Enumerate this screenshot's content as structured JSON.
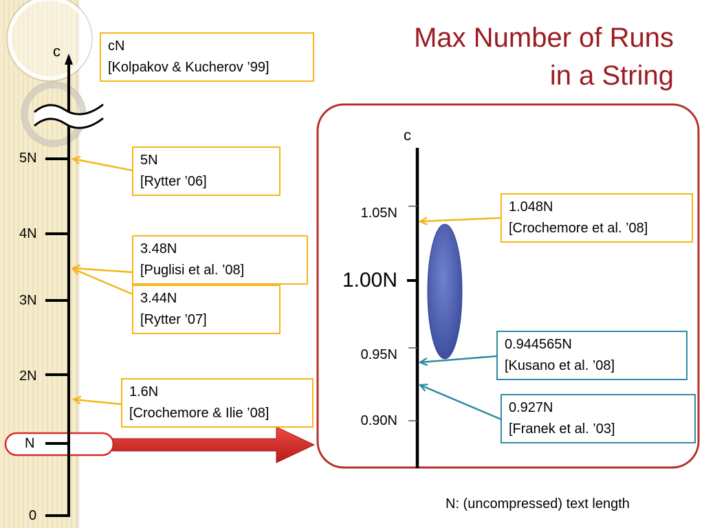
{
  "colors": {
    "title": "#9B1C22",
    "box_border_yellow": "#F4B619",
    "box_border_teal": "#2E8BA3",
    "panel_border": "#B3302C",
    "highlight_arrow": "#D62B2B",
    "ellipse": "#4A5DB0"
  },
  "title": {
    "line1": "Max Number of Runs",
    "line2": "in a String"
  },
  "left_axis": {
    "top_label": "c",
    "ticks": [
      "5N",
      "4N",
      "3N",
      "2N",
      "N",
      "0"
    ]
  },
  "left_results": [
    {
      "value": "cN",
      "citation": "[Kolpakov & Kucherov ’99]"
    },
    {
      "value": "5N",
      "citation": "[Rytter ’06]"
    },
    {
      "value": "3.48N",
      "citation": "[Puglisi et al. ’08]"
    },
    {
      "value": "3.44N",
      "citation": "[Rytter ’07]"
    },
    {
      "value": "1.6N",
      "citation": "[Crochemore & Ilie ’08]"
    }
  ],
  "right_axis": {
    "top_label": "c",
    "ticks": [
      "1.05N",
      "1.00N",
      "0.95N",
      "0.90N"
    ]
  },
  "right_results": [
    {
      "value": "1.048N",
      "citation": "[Crochemore et al. ’08]"
    },
    {
      "value": "0.944565N",
      "citation": "[Kusano et al. ’08]"
    },
    {
      "value": "0.927N",
      "citation": "[Franek et al. ’03]"
    }
  ],
  "footnote": "N: (uncompressed) text length"
}
